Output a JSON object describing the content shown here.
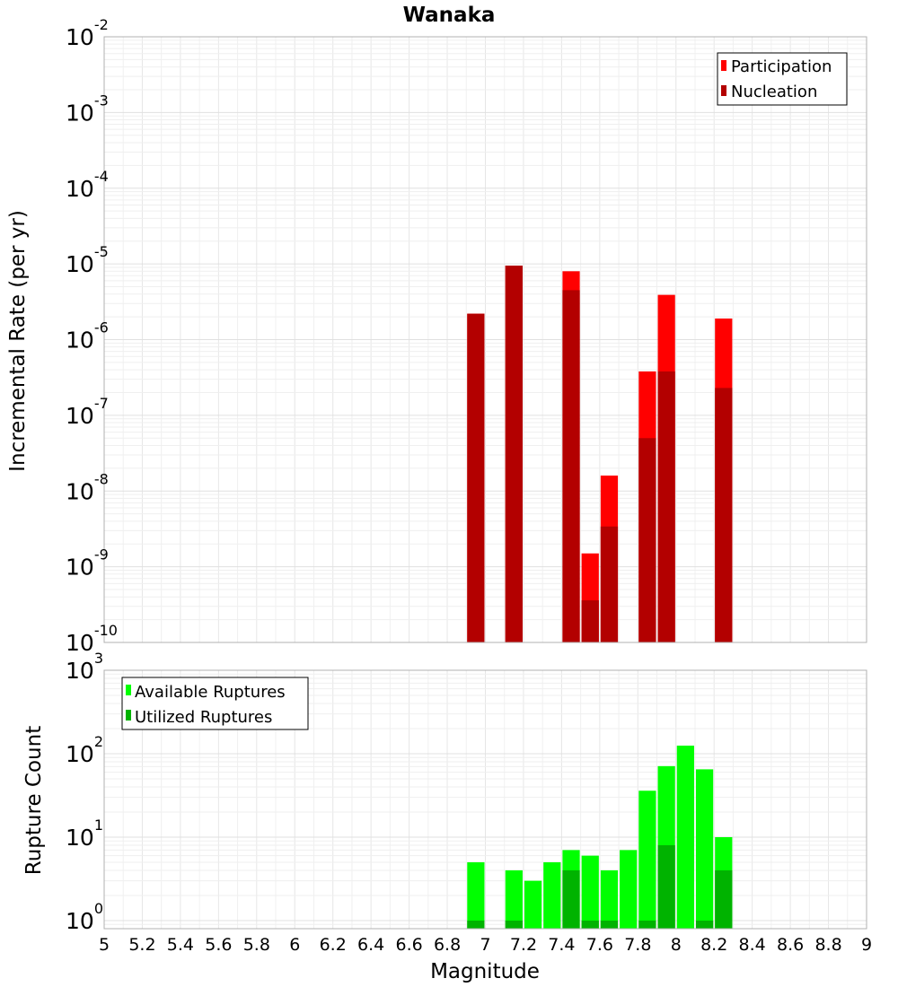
{
  "chart_data": [
    {
      "type": "bar",
      "title": "Wanaka",
      "xlabel": "",
      "ylabel": "Incremental Rate (per yr)",
      "yscale": "log",
      "xlim": [
        5,
        9
      ],
      "ylim": [
        1e-10,
        0.01
      ],
      "legend_position": "top-right",
      "bin_width": 0.1,
      "y_ticks": [
        {
          "base": "10",
          "exp": "-2"
        },
        {
          "base": "10",
          "exp": "-3"
        },
        {
          "base": "10",
          "exp": "-4"
        },
        {
          "base": "10",
          "exp": "-5"
        },
        {
          "base": "10",
          "exp": "-6"
        },
        {
          "base": "10",
          "exp": "-7"
        },
        {
          "base": "10",
          "exp": "-8"
        },
        {
          "base": "10",
          "exp": "-9"
        },
        {
          "base": "10",
          "exp": "-10"
        }
      ],
      "series": [
        {
          "name": "Participation",
          "color": "#ff0000",
          "x": [
            6.95,
            7.15,
            7.45,
            7.55,
            7.65,
            7.85,
            7.95,
            8.25
          ],
          "values": [
            2.2e-06,
            9.5e-06,
            8e-06,
            1.5e-09,
            1.6e-08,
            3.8e-07,
            3.9e-06,
            1.9e-06
          ]
        },
        {
          "name": "Nucleation",
          "color": "#b30000",
          "x": [
            6.95,
            7.15,
            7.45,
            7.55,
            7.65,
            7.85,
            7.95,
            8.25
          ],
          "values": [
            2.2e-06,
            9.5e-06,
            4.5e-06,
            3.6e-10,
            3.4e-09,
            5e-08,
            3.8e-07,
            2.3e-07
          ]
        }
      ]
    },
    {
      "type": "bar",
      "title": "",
      "xlabel": "Magnitude",
      "ylabel": "Rupture Count",
      "yscale": "log",
      "xlim": [
        5,
        9
      ],
      "ylim": [
        0.8,
        1000
      ],
      "legend_position": "top-left",
      "bin_width": 0.1,
      "y_ticks": [
        {
          "base": "10",
          "exp": "3"
        },
        {
          "base": "10",
          "exp": "2"
        },
        {
          "base": "10",
          "exp": "1"
        },
        {
          "base": "10",
          "exp": "0"
        }
      ],
      "x_ticks": [
        "5",
        "5.2",
        "5.4",
        "5.6",
        "5.8",
        "6",
        "6.2",
        "6.4",
        "6.6",
        "6.8",
        "7",
        "7.2",
        "7.4",
        "7.6",
        "7.8",
        "8",
        "8.2",
        "8.4",
        "8.6",
        "8.8",
        "9"
      ],
      "series": [
        {
          "name": "Available Ruptures",
          "color": "#00ff00",
          "x": [
            6.95,
            7.15,
            7.25,
            7.35,
            7.45,
            7.55,
            7.65,
            7.75,
            7.85,
            7.95,
            8.05,
            8.15,
            8.25
          ],
          "values": [
            5,
            4,
            3,
            5,
            7,
            6,
            4,
            7,
            36,
            71,
            125,
            65,
            10
          ]
        },
        {
          "name": "Utilized Ruptures",
          "color": "#00b300",
          "x": [
            6.95,
            7.15,
            7.25,
            7.35,
            7.45,
            7.55,
            7.65,
            7.75,
            7.85,
            7.95,
            8.05,
            8.15,
            8.25
          ],
          "values": [
            1,
            1,
            0,
            0,
            4,
            1,
            1,
            0,
            1,
            8,
            0,
            1,
            4
          ]
        }
      ]
    }
  ]
}
